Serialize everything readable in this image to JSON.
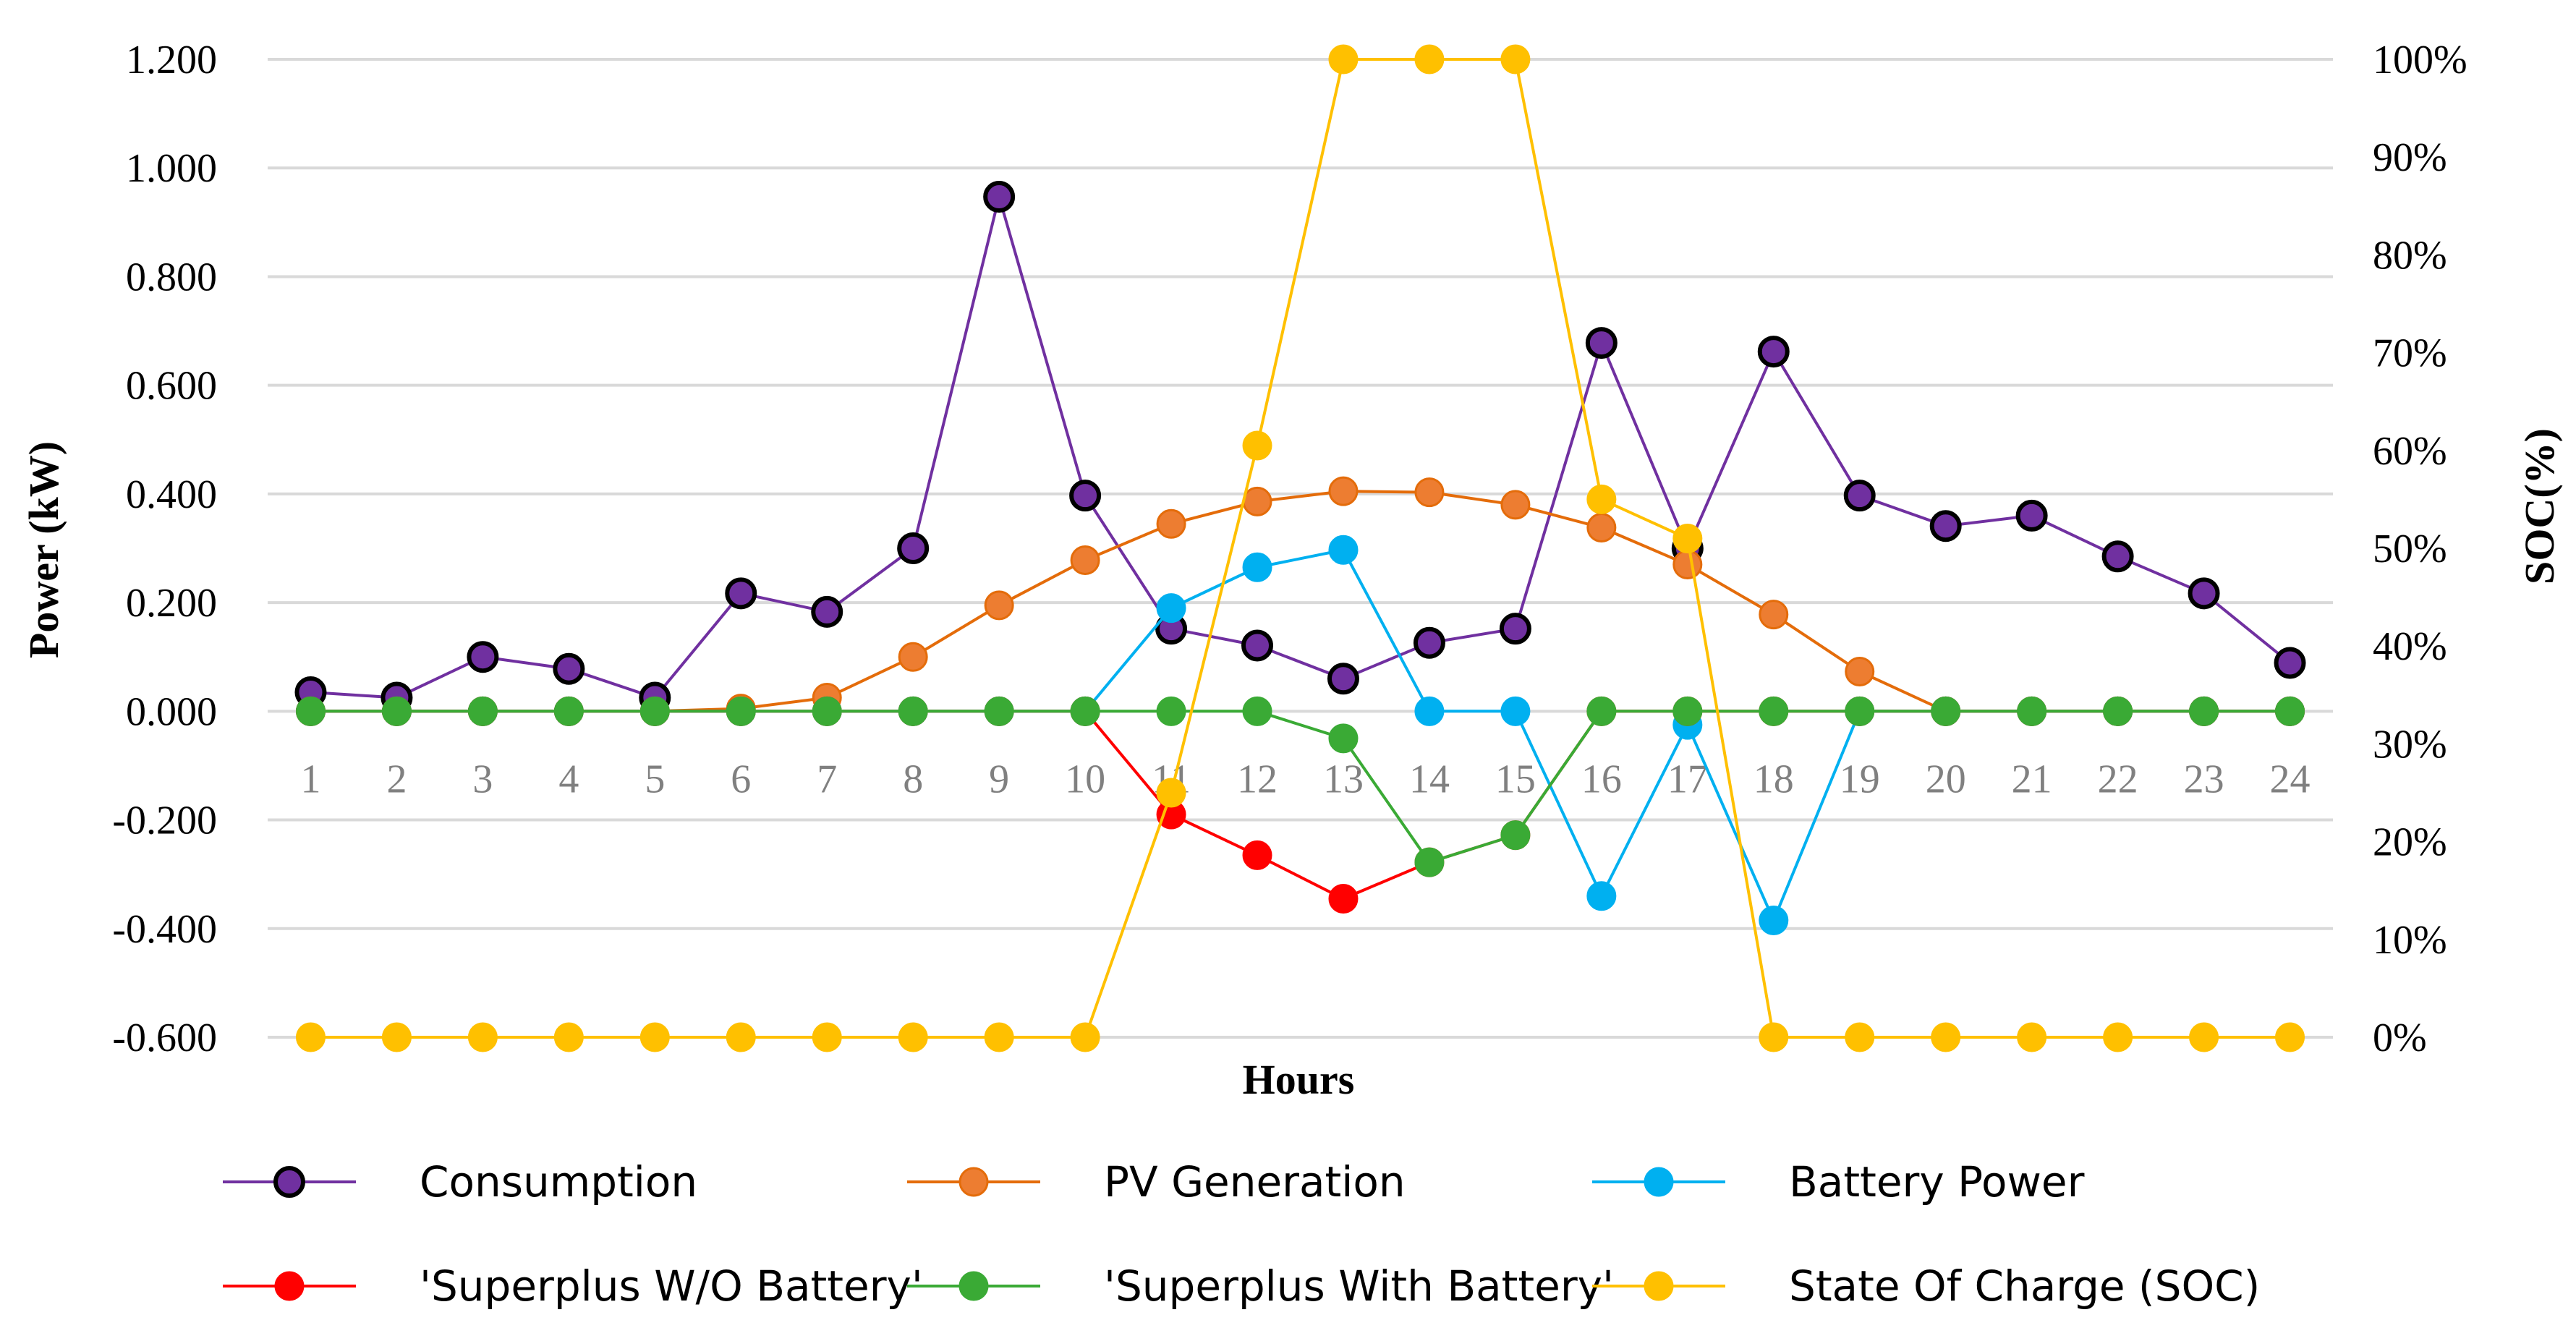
{
  "chart_data": {
    "type": "line",
    "title": "",
    "xlabel": "Hours",
    "ylabel": "Power (kW)",
    "y2label": "SOC(%)",
    "categories": [
      "1",
      "2",
      "3",
      "4",
      "5",
      "6",
      "7",
      "8",
      "9",
      "10",
      "11",
      "12",
      "13",
      "14",
      "15",
      "16",
      "17",
      "18",
      "19",
      "20",
      "21",
      "22",
      "23",
      "24"
    ],
    "ylim": [
      -0.6,
      1.2
    ],
    "y2lim": [
      0,
      100
    ],
    "yticks": [
      "-0.600",
      "-0.400",
      "-0.200",
      "0.000",
      "0.200",
      "0.400",
      "0.600",
      "0.800",
      "1.000",
      "1.200"
    ],
    "yticks_values": [
      -0.6,
      -0.4,
      -0.2,
      0,
      0.2,
      0.4,
      0.6,
      0.8,
      1.0,
      1.2
    ],
    "y2ticks": [
      "0%",
      "10%",
      "20%",
      "30%",
      "40%",
      "50%",
      "60%",
      "70%",
      "80%",
      "90%",
      "100%"
    ],
    "y2ticks_values": [
      0,
      10,
      20,
      30,
      40,
      50,
      60,
      70,
      80,
      90,
      100
    ],
    "grid": true,
    "legend_position": "bottom",
    "series": [
      {
        "name": "Consumption",
        "axis": "left",
        "color": "#7030A0",
        "marker_fill": "#7030A0",
        "marker_edge": "#000000",
        "values": [
          0.035,
          0.025,
          0.1,
          0.078,
          0.025,
          0.217,
          0.183,
          0.3,
          0.947,
          0.397,
          0.152,
          0.121,
          0.06,
          0.126,
          0.152,
          0.678,
          0.3,
          0.662,
          0.397,
          0.341,
          0.36,
          0.285,
          0.217,
          0.089
        ]
      },
      {
        "name": "PV Generation",
        "axis": "left",
        "color": "#E46C0A",
        "marker_fill": "#ED7D31",
        "marker_edge": "#E46C0A",
        "values": [
          0,
          0,
          0,
          0,
          0,
          0.005,
          0.025,
          0.1,
          0.195,
          0.278,
          0.345,
          0.386,
          0.405,
          0.403,
          0.38,
          0.338,
          0.27,
          0.178,
          0.073,
          0,
          0,
          0,
          0,
          0
        ]
      },
      {
        "name": "Battery Power",
        "axis": "left",
        "color": "#00B0F0",
        "marker_fill": "#00B0F0",
        "marker_edge": "#00B0F0",
        "values": [
          0,
          0,
          0,
          0,
          0,
          0,
          0,
          0,
          0,
          0,
          0.19,
          0.265,
          0.297,
          0,
          0,
          -0.34,
          -0.025,
          -0.385,
          0,
          0,
          0,
          0,
          0,
          0
        ]
      },
      {
        "name": "'Superplus W/O Battery'",
        "axis": "left",
        "color": "#FF0000",
        "marker_fill": "#FF0000",
        "marker_edge": "#FF0000",
        "values": [
          0,
          0,
          0,
          0,
          0,
          0,
          0,
          0,
          0,
          0,
          -0.19,
          -0.265,
          -0.345,
          -0.278,
          -0.228,
          0,
          0,
          0,
          0,
          0,
          0,
          0,
          0,
          0
        ]
      },
      {
        "name": "'Superplus With Battery'",
        "axis": "left",
        "color": "#3AAA35",
        "marker_fill": "#3AAA35",
        "marker_edge": "#3AAA35",
        "values": [
          0,
          0,
          0,
          0,
          0,
          0,
          0,
          0,
          0,
          0,
          0,
          0,
          -0.05,
          -0.278,
          -0.228,
          0,
          0,
          0,
          0,
          0,
          0,
          0,
          0,
          0
        ]
      },
      {
        "name": "State Of Charge (SOC)",
        "axis": "right",
        "color": "#FFC000",
        "marker_fill": "#FFC000",
        "marker_edge": "#FFC000",
        "values": [
          0,
          0,
          0,
          0,
          0,
          0,
          0,
          0,
          0,
          0,
          25,
          60.5,
          100,
          100,
          100,
          55,
          51,
          0,
          0,
          0,
          0,
          0,
          0,
          0
        ]
      }
    ]
  }
}
